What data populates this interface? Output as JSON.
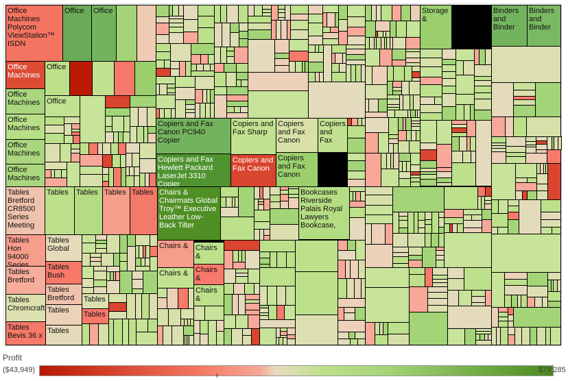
{
  "chart_data": {
    "type": "treemap",
    "color_measure": "Profit",
    "color_range": {
      "min_label": "($43,949)",
      "max_label": "$79,285",
      "min": -43949,
      "max": 79285
    },
    "gradient_colors": [
      "#b81800",
      "#f4735e",
      "#f7a898",
      "#e8dcc0",
      "#bde08b",
      "#a3d477",
      "#4a8a1e"
    ],
    "filler_palette": [
      "#bde08b",
      "#c8e39a",
      "#d6e0a8",
      "#e3dbbc",
      "#ecd0b8",
      "#f7a898",
      "#f7796a",
      "#a3d477",
      "#d9452f",
      "#dce0b0"
    ],
    "labeled_cells": [
      {
        "label": "Office Machines Polycom ViewStation™ ISDN",
        "color": "#f47461"
      },
      {
        "label": "Office",
        "color": "#6aaa58"
      },
      {
        "label": "Office",
        "color": "#74b35e"
      },
      {
        "label": "",
        "color": "#a3d477"
      },
      {
        "label": "",
        "color": "#efcbb4"
      },
      {
        "label": "Office Machines",
        "color": "#dc4c35",
        "light": true
      },
      {
        "label": "Office",
        "color": "#bde08b"
      },
      {
        "label": "",
        "color": "#bb1a05"
      },
      {
        "label": "",
        "color": "#c2e291"
      },
      {
        "label": "",
        "color": "#f7796a"
      },
      {
        "label": "",
        "color": "#9bcf6e"
      },
      {
        "label": "Office Machines",
        "color": "#a9d67e"
      },
      {
        "label": "Office Machines",
        "color": "#b8de87"
      },
      {
        "label": "Office Machines",
        "color": "#a9d67e"
      },
      {
        "label": "Office Machines",
        "color": "#a9d67e"
      },
      {
        "label": "Office",
        "color": "#c2e291"
      },
      {
        "label": "Copiers and Fax Canon PC940 Copier",
        "color": "#74b35e"
      },
      {
        "label": "Copiers and Fax Hewlett Packard LaserJet 3310 Copier",
        "color": "#4f9431",
        "light": true
      },
      {
        "label": "Copiers and Fax Sharp",
        "color": "#c2e291"
      },
      {
        "label": "Copiers and Fax Canon",
        "color": "#d9452f",
        "light": true
      },
      {
        "label": "Copiers and Fax Canon",
        "color": "#d9e0a8"
      },
      {
        "label": "Copiers and Fax Canon",
        "color": "#9bcf6e"
      },
      {
        "label": "Copiers and Fax",
        "color": "#c2e291"
      },
      {
        "label": "Tables Bretford CR8500 Series Meeting",
        "color": "#efc2ae"
      },
      {
        "label": "Tables",
        "color": "#bde08b"
      },
      {
        "label": "Tables",
        "color": "#b4dc82"
      },
      {
        "label": "Tables",
        "color": "#f79d8c"
      },
      {
        "label": "Tables",
        "color": "#f5796a"
      },
      {
        "label": "Chairs & Chairmats Global Troy™ Executive Leather Low-Back Tilter",
        "color": "#4f8f24",
        "light": true
      },
      {
        "label": "Tables Hon 94000 Series",
        "color": "#f79d8c"
      },
      {
        "label": "Tables Global",
        "color": "#e5dbbb"
      },
      {
        "label": "Tables Bretford",
        "color": "#f7ad9c"
      },
      {
        "label": "Tables Bush",
        "color": "#f7796a"
      },
      {
        "label": "Tables Bretford",
        "color": "#efc2ae"
      },
      {
        "label": "Tables Chromcraft",
        "color": "#dce0b0"
      },
      {
        "label": "Tables Bevis 36 x",
        "color": "#f7796a"
      },
      {
        "label": "Tables",
        "color": "#ecd3b8"
      },
      {
        "label": "Tables",
        "color": "#e5dbbb"
      },
      {
        "label": "Tables",
        "color": "#dce0b0"
      },
      {
        "label": "Tables",
        "color": "#f7796a"
      },
      {
        "label": "Chairs &",
        "color": "#f79d8c"
      },
      {
        "label": "Chairs &",
        "color": "#c2e291"
      },
      {
        "label": "Chairs &",
        "color": "#bde08b"
      },
      {
        "label": "Chairs &",
        "color": "#f7796a"
      },
      {
        "label": "Chairs &",
        "color": "#bde08b"
      },
      {
        "label": "Bookcases Riverside Palais Royal Lawyers Bookcase,",
        "color": "#b4dc82"
      },
      {
        "label": "Storage &",
        "color": "#9bcf6e"
      },
      {
        "label": "Binders and Binder",
        "color": "#74b35e"
      },
      {
        "label": "Binders and Binder",
        "color": "#7ab862"
      }
    ]
  }
}
